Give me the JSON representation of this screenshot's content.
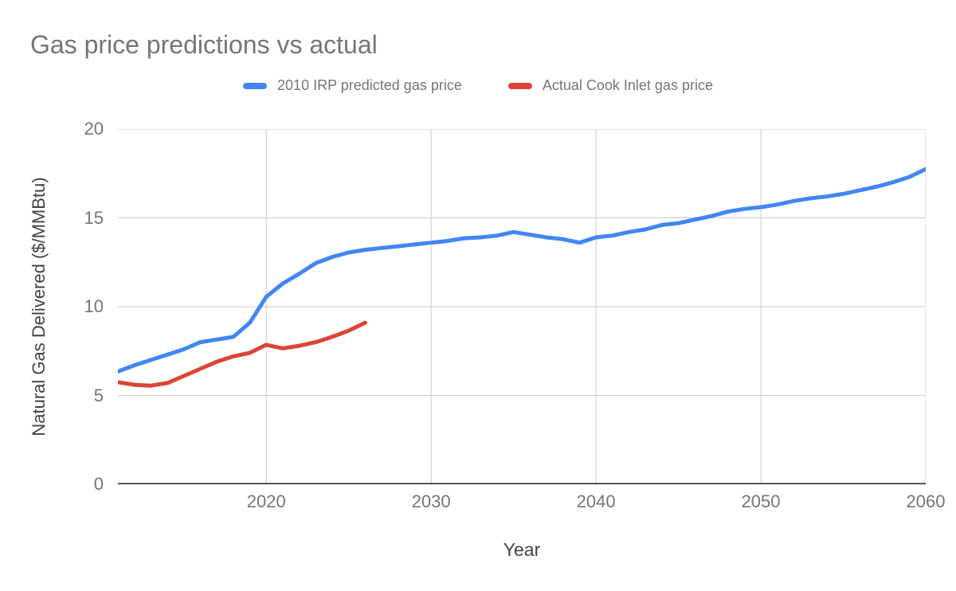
{
  "title": "Gas price predictions vs actual",
  "colors": {
    "series_predicted": "#4285F4",
    "series_actual": "#DB4437",
    "grid": "#CCCCCC",
    "axis_line": "#212121",
    "title_text": "#757575",
    "tick_text": "#757575",
    "axis_title_text": "#424242",
    "background": "#FFFFFF"
  },
  "chart_data": {
    "type": "line",
    "title": "Gas price predictions vs actual",
    "xlabel": "Year",
    "ylabel": "Natural Gas Delivered ($/MMBtu)",
    "xlim": [
      2011,
      2060
    ],
    "ylim": [
      0,
      20
    ],
    "x_ticks": [
      2020,
      2030,
      2040,
      2050,
      2060
    ],
    "y_ticks": [
      0,
      5,
      10,
      15,
      20
    ],
    "grid": true,
    "legend_position": "top",
    "series": [
      {
        "name": "2010 IRP predicted gas price",
        "color": "#4285F4",
        "x": [
          2011,
          2012,
          2013,
          2014,
          2015,
          2016,
          2017,
          2018,
          2019,
          2020,
          2021,
          2022,
          2023,
          2024,
          2025,
          2026,
          2027,
          2028,
          2029,
          2030,
          2031,
          2032,
          2033,
          2034,
          2035,
          2036,
          2037,
          2038,
          2039,
          2040,
          2041,
          2042,
          2043,
          2044,
          2045,
          2046,
          2047,
          2048,
          2049,
          2050,
          2051,
          2052,
          2053,
          2054,
          2055,
          2056,
          2057,
          2058,
          2059,
          2060
        ],
        "values": [
          6.35,
          6.7,
          7.0,
          7.3,
          7.6,
          8.0,
          8.15,
          8.3,
          9.1,
          10.55,
          11.3,
          11.85,
          12.45,
          12.8,
          13.05,
          13.2,
          13.3,
          13.4,
          13.5,
          13.6,
          13.7,
          13.85,
          13.9,
          14.0,
          14.2,
          14.05,
          13.9,
          13.8,
          13.6,
          13.9,
          14.0,
          14.2,
          14.35,
          14.6,
          14.7,
          14.9,
          15.1,
          15.35,
          15.5,
          15.6,
          15.75,
          15.95,
          16.1,
          16.2,
          16.35,
          16.55,
          16.75,
          17.0,
          17.3,
          17.75
        ]
      },
      {
        "name": "Actual Cook Inlet gas price",
        "color": "#DB4437",
        "x": [
          2011,
          2012,
          2013,
          2014,
          2015,
          2016,
          2017,
          2018,
          2019,
          2020,
          2021,
          2022,
          2023,
          2024,
          2025,
          2026
        ],
        "values": [
          5.75,
          5.6,
          5.55,
          5.7,
          6.1,
          6.5,
          6.9,
          7.2,
          7.4,
          7.85,
          7.65,
          7.8,
          8.0,
          8.3,
          8.65,
          9.1
        ]
      }
    ]
  }
}
